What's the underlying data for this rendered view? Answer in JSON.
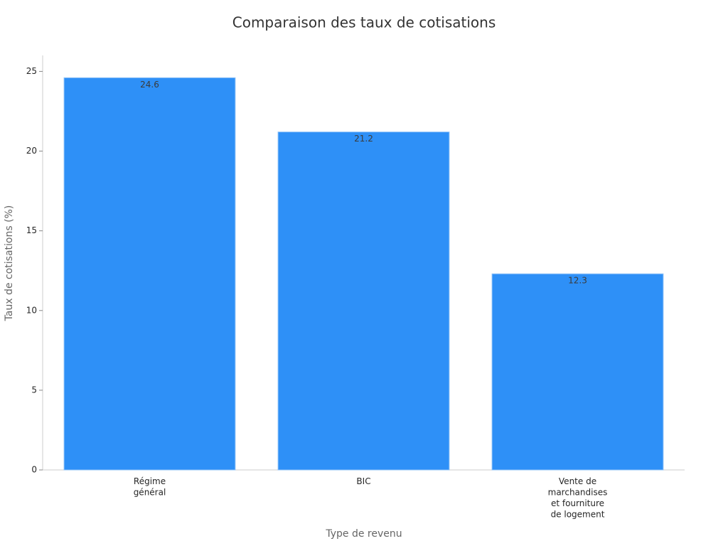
{
  "chart_data": {
    "type": "bar",
    "title": "Comparaison des taux de cotisations",
    "x_label": "Type de revenu",
    "y_label": "Taux de cotisations (%)",
    "categories": [
      "Régime général",
      "BIC",
      "Vente de marchandises et fourniture de logement"
    ],
    "values": [
      24.6,
      21.2,
      12.3
    ],
    "color": "#2e90f7",
    "ylim": [
      0,
      26
    ],
    "yticks": [
      0,
      5,
      10,
      15,
      20,
      25
    ],
    "grid": false
  }
}
